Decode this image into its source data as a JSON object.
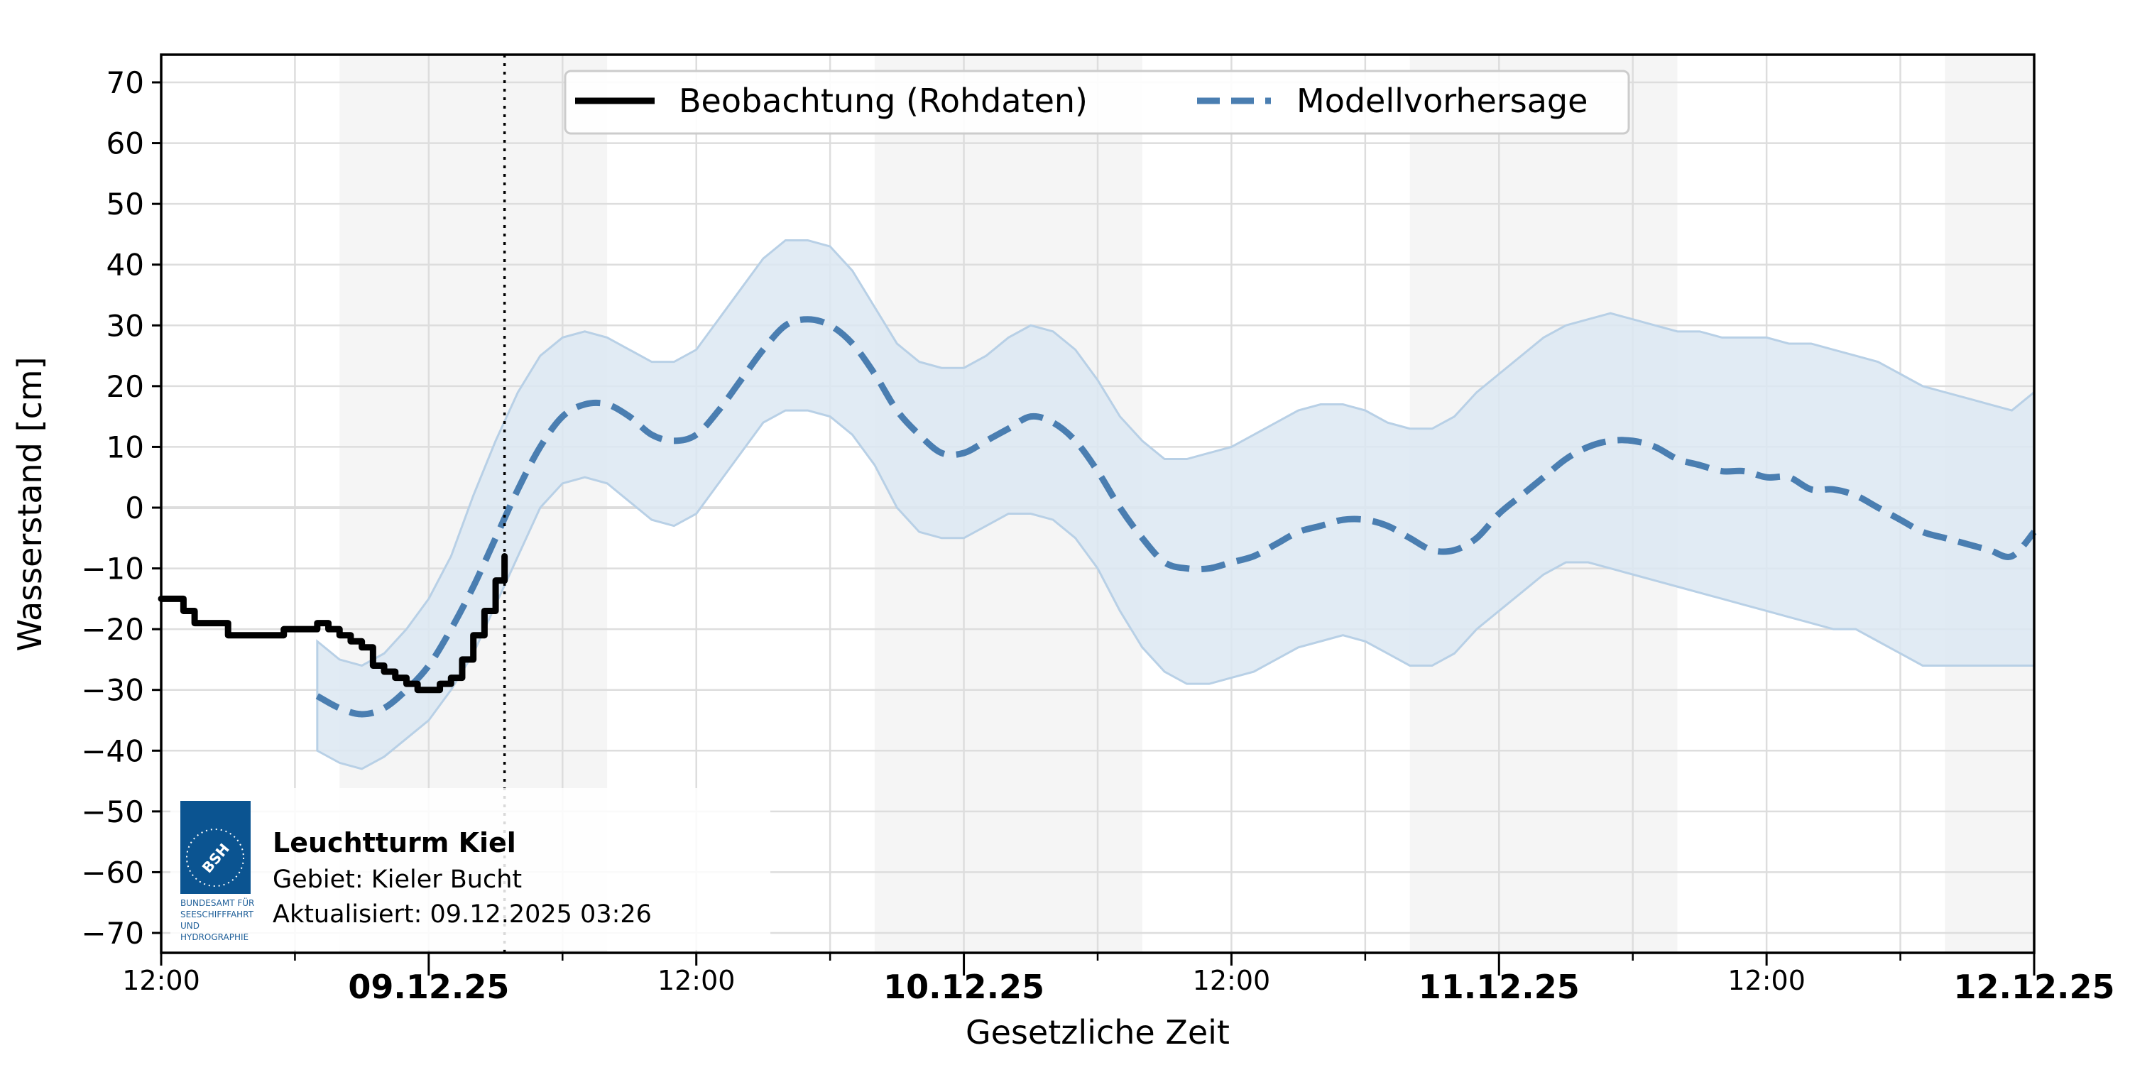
{
  "chart_data": {
    "type": "line",
    "title": "",
    "xlabel": "Gesetzliche Zeit",
    "ylabel": "Wasserstand [cm]",
    "ylim": [
      -73,
      75
    ],
    "yticks": [
      70,
      60,
      50,
      40,
      30,
      20,
      10,
      0,
      -10,
      -20,
      -30,
      -40,
      -50,
      -60,
      -70
    ],
    "xticks": [
      {
        "label": "12:00",
        "bold": false,
        "hours": 0
      },
      {
        "label": "09.12.25",
        "bold": true,
        "hours": 12
      },
      {
        "label": "12:00",
        "bold": false,
        "hours": 24
      },
      {
        "label": "10.12.25",
        "bold": true,
        "hours": 36
      },
      {
        "label": "12:00",
        "bold": false,
        "hours": 48
      },
      {
        "label": "11.12.25",
        "bold": true,
        "hours": 60
      },
      {
        "label": "12:00",
        "bold": false,
        "hours": 72
      },
      {
        "label": "12.12.25",
        "bold": true,
        "hours": 84
      }
    ],
    "x_range_hours": [
      0,
      84
    ],
    "x_origin": "08.12.25 12:00",
    "grid": true,
    "now_marker_hours": 15.4,
    "night_bands_hours": [
      [
        8,
        20
      ],
      [
        32,
        44
      ],
      [
        56,
        68
      ],
      [
        80,
        84
      ]
    ],
    "legend": {
      "position": "upper center",
      "entries": [
        "Beobachtung (Rohdaten)",
        "Modellvorhersage"
      ]
    },
    "series": [
      {
        "name": "Beobachtung (Rohdaten)",
        "style": "solid",
        "color": "#000000",
        "x_hours": [
          0,
          0.5,
          1,
          1.5,
          2,
          2.5,
          3,
          3.5,
          4,
          4.5,
          5,
          5.5,
          6,
          6.5,
          7,
          7.5,
          8,
          8.5,
          9,
          9.5,
          10,
          10.5,
          11,
          11.5,
          12,
          12.5,
          13,
          13.5,
          14,
          14.5,
          15,
          15.4
        ],
        "values": [
          -15,
          -15,
          -17,
          -19,
          -19,
          -19,
          -21,
          -21,
          -21,
          -21,
          -21,
          -20,
          -20,
          -20,
          -19,
          -20,
          -21,
          -22,
          -23,
          -26,
          -27,
          -28,
          -29,
          -30,
          -30,
          -29,
          -28,
          -25,
          -21,
          -17,
          -12,
          -8
        ]
      },
      {
        "name": "Modellvorhersage",
        "style": "dashed",
        "color": "#4a7eb1",
        "x_hours": [
          7,
          8,
          9,
          10,
          11,
          12,
          13,
          14,
          15,
          16,
          17,
          18,
          19,
          20,
          21,
          22,
          23,
          24,
          25,
          26,
          27,
          28,
          29,
          30,
          31,
          32,
          33,
          34,
          35,
          36,
          37,
          38,
          39,
          40,
          41,
          42,
          43,
          44,
          45,
          46,
          47,
          48,
          49,
          50,
          51,
          52,
          53,
          54,
          55,
          56,
          57,
          58,
          59,
          60,
          61,
          62,
          63,
          64,
          65,
          66,
          67,
          68,
          69,
          70,
          71,
          72,
          73,
          74,
          75,
          76,
          77,
          78,
          79,
          80,
          81,
          82,
          83,
          84
        ],
        "values": [
          -31,
          -33,
          -34,
          -33,
          -30,
          -26,
          -20,
          -13,
          -5,
          3,
          10,
          15,
          17,
          17,
          15,
          12,
          11,
          12,
          16,
          21,
          26,
          30,
          31,
          30,
          27,
          22,
          16,
          12,
          9,
          9,
          11,
          13,
          15,
          14,
          11,
          6,
          0,
          -5,
          -9,
          -10,
          -10,
          -9,
          -8,
          -6,
          -4,
          -3,
          -2,
          -2,
          -3,
          -5,
          -7,
          -7,
          -5,
          -1,
          2,
          5,
          8,
          10,
          11,
          11,
          10,
          8,
          7,
          6,
          6,
          5,
          5,
          3,
          3,
          2,
          0,
          -2,
          -4,
          -5,
          -6,
          -7,
          -8,
          -4
        ]
      },
      {
        "name": "Unsicherheitsband (oben)",
        "style": "fill",
        "color": "#dde8f2",
        "x_hours": [
          7,
          8,
          9,
          10,
          11,
          12,
          13,
          14,
          15,
          16,
          17,
          18,
          19,
          20,
          21,
          22,
          23,
          24,
          25,
          26,
          27,
          28,
          29,
          30,
          31,
          32,
          33,
          34,
          35,
          36,
          37,
          38,
          39,
          40,
          41,
          42,
          43,
          44,
          45,
          46,
          47,
          48,
          49,
          50,
          51,
          52,
          53,
          54,
          55,
          56,
          57,
          58,
          59,
          60,
          61,
          62,
          63,
          64,
          65,
          66,
          67,
          68,
          69,
          70,
          71,
          72,
          73,
          74,
          75,
          76,
          77,
          78,
          79,
          80,
          81,
          82,
          83,
          84
        ],
        "values": [
          -22,
          -25,
          -26,
          -24,
          -20,
          -15,
          -8,
          2,
          11,
          19,
          25,
          28,
          29,
          28,
          26,
          24,
          24,
          26,
          31,
          36,
          41,
          44,
          44,
          43,
          39,
          33,
          27,
          24,
          23,
          23,
          25,
          28,
          30,
          29,
          26,
          21,
          15,
          11,
          8,
          8,
          9,
          10,
          12,
          14,
          16,
          17,
          17,
          16,
          14,
          13,
          13,
          15,
          19,
          22,
          25,
          28,
          30,
          31,
          32,
          31,
          30,
          29,
          29,
          28,
          28,
          28,
          27,
          27,
          26,
          25,
          24,
          22,
          20,
          19,
          18,
          17,
          16,
          19
        ]
      },
      {
        "name": "Unsicherheitsband (unten)",
        "style": "fill",
        "color": "#dde8f2",
        "x_hours": [
          7,
          8,
          9,
          10,
          11,
          12,
          13,
          14,
          15,
          16,
          17,
          18,
          19,
          20,
          21,
          22,
          23,
          24,
          25,
          26,
          27,
          28,
          29,
          30,
          31,
          32,
          33,
          34,
          35,
          36,
          37,
          38,
          39,
          40,
          41,
          42,
          43,
          44,
          45,
          46,
          47,
          48,
          49,
          50,
          51,
          52,
          53,
          54,
          55,
          56,
          57,
          58,
          59,
          60,
          61,
          62,
          63,
          64,
          65,
          66,
          67,
          68,
          69,
          70,
          71,
          72,
          73,
          74,
          75,
          76,
          77,
          78,
          79,
          80,
          81,
          82,
          83,
          84
        ],
        "values": [
          -40,
          -42,
          -43,
          -41,
          -38,
          -35,
          -30,
          -24,
          -16,
          -8,
          0,
          4,
          5,
          4,
          1,
          -2,
          -3,
          -1,
          4,
          9,
          14,
          16,
          16,
          15,
          12,
          7,
          0,
          -4,
          -5,
          -5,
          -3,
          -1,
          -1,
          -2,
          -5,
          -10,
          -17,
          -23,
          -27,
          -29,
          -29,
          -28,
          -27,
          -25,
          -23,
          -22,
          -21,
          -22,
          -24,
          -26,
          -26,
          -24,
          -20,
          -17,
          -14,
          -11,
          -9,
          -9,
          -10,
          -11,
          -12,
          -13,
          -14,
          -15,
          -16,
          -17,
          -18,
          -19,
          -20,
          -20,
          -22,
          -24,
          -26,
          -26,
          -26,
          -26,
          -26,
          -26
        ]
      }
    ]
  },
  "legend": {
    "observation_label": "Beobachtung (Rohdaten)",
    "forecast_label": "Modellvorhersage"
  },
  "info_box": {
    "station": "Leuchtturm Kiel",
    "area": "Gebiet: Kieler Bucht",
    "updated": "Aktualisiert: 09.12.2025 03:26",
    "logo_text": "BSH",
    "logo_caption": [
      "BUNDESAMT FÜR",
      "SEESCHIFFFAHRT",
      "UND",
      "HYDROGRAPHIE"
    ]
  },
  "axes": {
    "xlabel": "Gesetzliche Zeit",
    "ylabel": "Wasserstand [cm]"
  },
  "colors": {
    "observation": "#000000",
    "forecast": "#4a7eb1",
    "band_fill": "#dce7f2",
    "band_edge": "#b8d0e6",
    "night_band": "#f5f5f5",
    "grid": "#dddddd",
    "logo": "#0b5491"
  }
}
